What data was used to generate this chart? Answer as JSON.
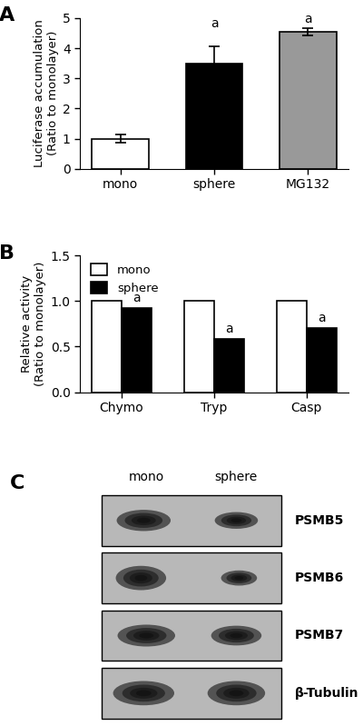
{
  "panel_A": {
    "categories": [
      "mono",
      "sphere",
      "MG132"
    ],
    "values": [
      1.0,
      3.5,
      4.55
    ],
    "errors": [
      0.15,
      0.55,
      0.12
    ],
    "colors": [
      "#ffffff",
      "#000000",
      "#999999"
    ],
    "ylabel": "Luciferase accumulation\n(Ratio to monolayer)",
    "ylim": [
      0,
      5
    ],
    "yticks": [
      0,
      1,
      2,
      3,
      4,
      5
    ],
    "sig_labels": [
      "",
      "a",
      "a"
    ],
    "bar_edge_color": "#000000"
  },
  "panel_B": {
    "groups": [
      "Chymo",
      "Tryp",
      "Casp"
    ],
    "mono_values": [
      1.0,
      1.0,
      1.0
    ],
    "sphere_values": [
      0.92,
      0.58,
      0.7
    ],
    "ylabel": "Relative activity\n(Ratio to monolayer)",
    "ylim": [
      0.0,
      1.5
    ],
    "yticks": [
      0.0,
      0.5,
      1.0,
      1.5
    ],
    "sig_labels_sphere": [
      "a",
      "a",
      "a"
    ],
    "legend_labels": [
      "mono",
      "sphere"
    ]
  },
  "panel_C": {
    "proteins": [
      "PSMB5",
      "PSMB6",
      "PSMB7",
      "β-Tubulin"
    ],
    "col_labels": [
      "mono",
      "sphere"
    ]
  },
  "font_size": 10,
  "tick_fontsize": 10
}
